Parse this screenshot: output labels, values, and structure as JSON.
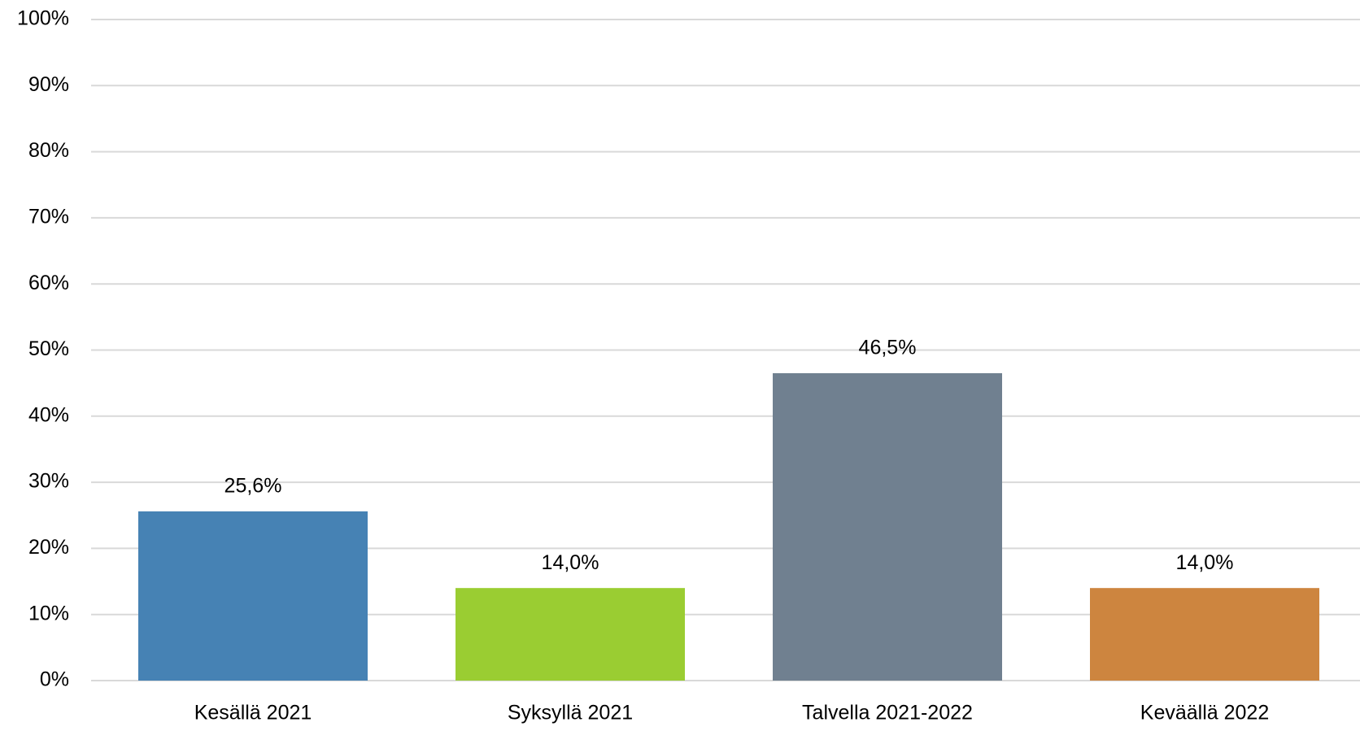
{
  "chart_data": {
    "type": "bar",
    "categories": [
      "Kesällä 2021",
      "Syksyllä 2021",
      "Talvella 2021-2022",
      "Keväällä 2022"
    ],
    "values": [
      25.6,
      14.0,
      46.5,
      14.0
    ],
    "value_labels": [
      "25,6%",
      "14,0%",
      "46,5%",
      "14,0%"
    ],
    "colors": [
      "#4682b4",
      "#9acd32",
      "#708090",
      "#cd853f"
    ],
    "ylim": [
      0,
      100
    ],
    "yticks": [
      {
        "value": 0,
        "label": "0%"
      },
      {
        "value": 10,
        "label": "10%"
      },
      {
        "value": 20,
        "label": "20%"
      },
      {
        "value": 30,
        "label": "30%"
      },
      {
        "value": 40,
        "label": "40%"
      },
      {
        "value": 50,
        "label": "50%"
      },
      {
        "value": 60,
        "label": "60%"
      },
      {
        "value": 70,
        "label": "70%"
      },
      {
        "value": 80,
        "label": "80%"
      },
      {
        "value": 90,
        "label": "90%"
      },
      {
        "value": 100,
        "label": "100%"
      }
    ],
    "grid": true
  }
}
